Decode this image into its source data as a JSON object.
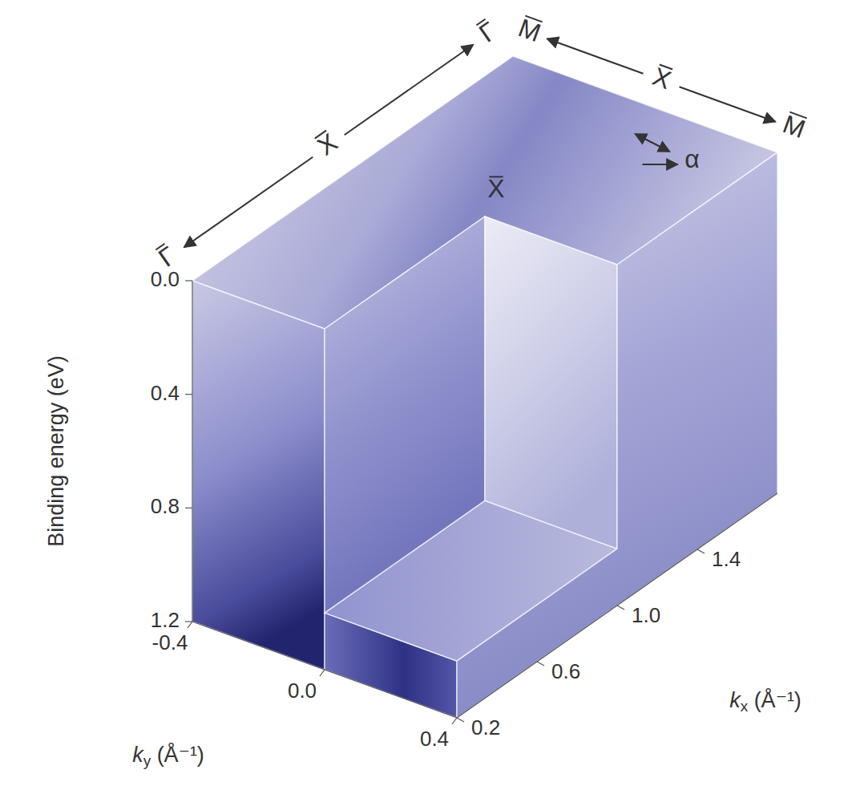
{
  "chart_data": {
    "type": "3d-cube",
    "x_label": "ky (Å⁻¹)",
    "y_label": "Binding energy (eV)",
    "z_label": "kx (Å⁻¹)",
    "xlim": [
      -0.4,
      0.4
    ],
    "xticks": [
      -0.4,
      {
        "value": 0,
        "label": "0.0"
      },
      0.4
    ],
    "ylim": [
      0,
      1.2
    ],
    "yticks": [
      {
        "value": 0,
        "label": "0.0"
      },
      0.4,
      0.8,
      1.2
    ],
    "zlim": [
      0.2,
      1.8
    ],
    "zticks": [
      0.2,
      0.6,
      {
        "value": 1,
        "label": "1.0"
      },
      1.4
    ],
    "cutout": {
      "ky": [
        0,
        0.4
      ],
      "kx": [
        0.2,
        1
      ],
      "E": [
        0,
        1
      ]
    },
    "kx_path_labels": [
      {
        "text": "Γ",
        "kx": 0.2
      },
      {
        "text": "X",
        "kx": 1
      },
      {
        "text": "Γ",
        "kx": 1.8
      }
    ],
    "ky_path_labels": [
      {
        "text": "M",
        "ky": -0.4
      },
      {
        "text": "X",
        "ky": 0
      },
      {
        "text": "M",
        "ky": 0.4
      }
    ],
    "cut_label": "X",
    "alpha_label": {
      "text": "α",
      "ky": 0.2,
      "kx": 1.6
    }
  }
}
